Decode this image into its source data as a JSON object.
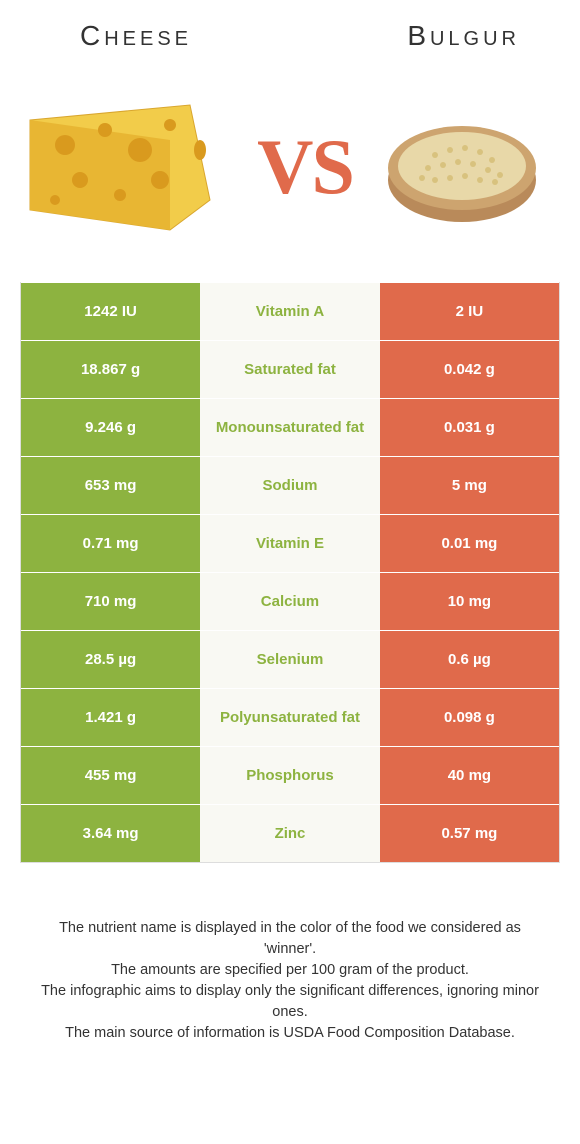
{
  "colors": {
    "left": "#8db340",
    "right": "#e06a4b",
    "mid_bg": "#f9f9f3",
    "vs": "#e06a4b"
  },
  "header": {
    "left_title": "Cheese",
    "right_title": "Bulgur",
    "vs": "VS"
  },
  "rows": [
    {
      "left": "1242 IU",
      "name": "Vitamin A",
      "right": "2 IU",
      "winner": "left"
    },
    {
      "left": "18.867 g",
      "name": "Saturated fat",
      "right": "0.042 g",
      "winner": "left"
    },
    {
      "left": "9.246 g",
      "name": "Monounsaturated fat",
      "right": "0.031 g",
      "winner": "left"
    },
    {
      "left": "653 mg",
      "name": "Sodium",
      "right": "5 mg",
      "winner": "left"
    },
    {
      "left": "0.71 mg",
      "name": "Vitamin E",
      "right": "0.01 mg",
      "winner": "left"
    },
    {
      "left": "710 mg",
      "name": "Calcium",
      "right": "10 mg",
      "winner": "left"
    },
    {
      "left": "28.5 µg",
      "name": "Selenium",
      "right": "0.6 µg",
      "winner": "left"
    },
    {
      "left": "1.421 g",
      "name": "Polyunsaturated fat",
      "right": "0.098 g",
      "winner": "left"
    },
    {
      "left": "455 mg",
      "name": "Phosphorus",
      "right": "40 mg",
      "winner": "left"
    },
    {
      "left": "3.64 mg",
      "name": "Zinc",
      "right": "0.57 mg",
      "winner": "left"
    }
  ],
  "notes": [
    "The nutrient name is displayed in the color of the food we considered as 'winner'.",
    "The amounts are specified per 100 gram of the product.",
    "The infographic aims to display only the significant differences, ignoring minor ones.",
    "The main source of information is USDA Food Composition Database."
  ]
}
